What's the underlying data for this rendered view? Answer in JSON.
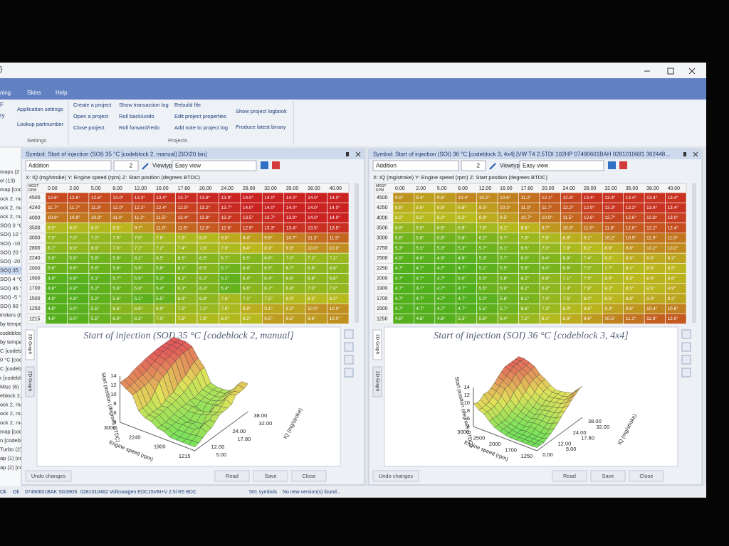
{
  "window": {
    "left_title": "}"
  },
  "ribbon": {
    "tabs": [
      "ning",
      "Skins",
      "Help"
    ],
    "left_fragments": [
      "F",
      "ry"
    ],
    "settings": {
      "items": [
        "Application settings",
        "Lookup partnumber"
      ],
      "label": "Settings"
    },
    "projects": {
      "columns": [
        [
          "Create a project",
          "Open a project",
          "Close project"
        ],
        [
          "Show transaction log",
          "Roll back/undo",
          "Roll forward/redo"
        ],
        [
          "Rebuild file",
          "Edit project properties",
          "Add note to project log"
        ],
        [
          "Show project logbook",
          "Produce latest binary"
        ]
      ],
      "label": "Projects"
    }
  },
  "tree": [
    "maps (2",
    "el (13)",
    "map [cod",
    "ock 2, ma",
    "ock 2, ma",
    "ock 2, ma",
    "SOI) 0 °C",
    "SOI) 10 °C",
    "SOI) -10 °",
    "SOI) 20 °C",
    "SOI) -20 °",
    "SOI) 35 °C",
    "SOI) 4 °C",
    "SOI) 45 °C",
    "SOI) -5 °C",
    "SOI) 60 °C",
    "imiters (8",
    "by temperat",
    "codeblock 1",
    "by temperatu",
    "C [codeblock",
    "0 °C [codeb",
    "C [codeblock",
    "r [codeblock",
    "Misc (6)",
    "eblock 2, mar",
    "ock 2, manual",
    "ock 2, ma",
    "ock 2, ma",
    "map [codebloc",
    "n [codeblock",
    "Turbo (2)",
    "ap (1) [codebl",
    "ap (2) [codebl"
  ],
  "panels": [
    {
      "title": "Symbol: Start of injection (SOI) 35 °C [codeblock 2, manual] [SOI20.bin]",
      "toolbar": {
        "mode": "Addition",
        "step": "2",
        "viewtype_label": "Viewtype",
        "viewtype": "Easy view"
      },
      "axes": "X: IQ (mg/stroke) Y: Engine speed (rpm) Z: Start position (degrees BTDC)",
      "table": {
        "corner": [
          "MGST",
          "RPM"
        ],
        "columns": [
          "0.00",
          "2.00",
          "5.00",
          "8.00",
          "12.00",
          "16.00",
          "17.80",
          "20.00",
          "24.00",
          "28.00",
          "32.00",
          "35.00",
          "38.00",
          "40.00"
        ],
        "rows": [
          4500,
          4240,
          4000,
          3500,
          3000,
          2800,
          2240,
          2000,
          1900,
          1700,
          1500,
          1250,
          1215
        ],
        "cells": [
          [
            "12.6°",
            "12.6°",
            "12.6°",
            "13.0°",
            "13.3°",
            "13.4°",
            "13.7°",
            "13.8°",
            "13.9°",
            "14.0°",
            "14.0°",
            "14.0°",
            "14.0°",
            "14.0°"
          ],
          [
            "11.7°",
            "11.7°",
            "11.9°",
            "12.0°",
            "12.2°",
            "12.4°",
            "12.9°",
            "13.2°",
            "13.7°",
            "14.0°",
            "14.0°",
            "14.0°",
            "14.0°",
            "14.0°"
          ],
          [
            "10.9°",
            "10.9°",
            "10.9°",
            "11.0°",
            "11.2°",
            "11.5°",
            "12.4°",
            "12.8°",
            "13.3°",
            "13.5°",
            "13.7°",
            "13.9°",
            "14.0°",
            "14.0°"
          ],
          [
            "8.0°",
            "8.0°",
            "8.0°",
            "8.5°",
            "9.7°",
            "11.0°",
            "11.5°",
            "12.0°",
            "12.5°",
            "12.9°",
            "13.3°",
            "13.4°",
            "13.5°",
            "13.5°"
          ],
          [
            "7.0°",
            "7.0°",
            "7.0°",
            "7.0°",
            "7.0°",
            "7.6°",
            "7.9°",
            "8.0°",
            "9.0°",
            "9.4°",
            "9.8°",
            "10.7°",
            "11.3°",
            "11.5°"
          ],
          [
            "6.7°",
            "6.9°",
            "6.9°",
            "7.0°",
            "7.2°",
            "7.2°",
            "7.4°",
            "7.6°",
            "7.9°",
            "8.4°",
            "8.9°",
            "9.3°",
            "10.0°",
            "10.0°"
          ],
          [
            "5.8°",
            "5.8°",
            "5.8°",
            "5.9°",
            "6.2°",
            "6.5°",
            "6.5°",
            "6.5°",
            "6.7°",
            "6.5°",
            "6.8°",
            "7.0°",
            "7.2°",
            "7.2°"
          ],
          [
            "5.6°",
            "5.6°",
            "5.6°",
            "5.6°",
            "5.9°",
            "5.8°",
            "6.1°",
            "6.5°",
            "5.7°",
            "6.4°",
            "6.5°",
            "6.7°",
            "6.8°",
            "6.8°"
          ],
          [
            "4.9°",
            "4.9°",
            "5.1°",
            "5.7°",
            "5.5°",
            "5.3°",
            "6.2°",
            "6.2°",
            "5.2°",
            "6.4°",
            "6.4°",
            "6.6°",
            "6.8°",
            "6.8°"
          ],
          [
            "4.8°",
            "4.8°",
            "5.2°",
            "5.6°",
            "5.8°",
            "5.4°",
            "6.3°",
            "6.3°",
            "5.4°",
            "6.6°",
            "6.7°",
            "6.9°",
            "7.0°",
            "7.0°"
          ],
          [
            "4.8°",
            "4.8°",
            "5.2°",
            "5.6°",
            "5.1°",
            "5.5°",
            "6.8°",
            "6.8°",
            "7.6°",
            "7.1°",
            "7.5°",
            "8.0°",
            "8.2°",
            "8.2°"
          ],
          [
            "4.8°",
            "5.0°",
            "5.5°",
            "6.6°",
            "6.8°",
            "6.9°",
            "7.3°",
            "7.2°",
            "7.8°",
            "8.8°",
            "9.1°",
            "9.2°",
            "10.0°",
            "10.0°"
          ],
          [
            "4.8°",
            "5.0°",
            "5.5°",
            "6.0°",
            "6.2°",
            "7.0°",
            "7.8°",
            "7.9°",
            "8.0°",
            "8.2°",
            "9.5°",
            "9.5°",
            "9.6°",
            "10.0°"
          ]
        ]
      },
      "chart": {
        "title": "Start of injection (SOI) 35 °C [codeblock 2, manual]",
        "z_label": "Start position (degrees BTDC)",
        "rpm_label": "Engine speed (rpm)",
        "iq_label": "IQ (mg/stroke)",
        "z_ticks": [
          "14",
          "12",
          "10",
          "8",
          "6",
          "4"
        ],
        "rpm_ticks": [
          "3000",
          "2240",
          "1900",
          "1215"
        ],
        "iq_ticks": [
          "38.00",
          "32.00",
          "24.00",
          "17.80",
          "12.00",
          "5.00"
        ]
      },
      "side_tabs": [
        "3D Graph",
        "2D Graph"
      ],
      "buttons": [
        "Undo changes",
        "Read",
        "Save",
        "Close"
      ]
    },
    {
      "title": "Symbol: Start of injection (SOI) 36 °C [codeblock 3, 4x4] [VW T4 2.5TDI 102HP 07490601BAH 0281010681 362448...",
      "toolbar": {
        "mode": "Addition",
        "step": "2",
        "viewtype_label": "Viewtype",
        "viewtype": "Easy view"
      },
      "axes": "X: IQ (mg/stroke) Y: Engine speed (rpm) Z: Start position (degrees BTDC)",
      "table": {
        "corner": [
          "MGST",
          "RPM"
        ],
        "columns": [
          "0.00",
          "2.00",
          "5.00",
          "8.00",
          "12.00",
          "16.00",
          "17.80",
          "20.00",
          "24.00",
          "28.00",
          "32.00",
          "35.00",
          "38.00",
          "40.00"
        ],
        "rows": [
          4500,
          4250,
          4000,
          3500,
          3000,
          2750,
          2500,
          2250,
          2000,
          1900,
          1700,
          1500,
          1250
        ],
        "cells": [
          [
            "9.9°",
            "9.4°",
            "9.6°",
            "10.4°",
            "10.2°",
            "10.6°",
            "11.2°",
            "12.1°",
            "12.8°",
            "13.4°",
            "13.4°",
            "13.4°",
            "13.4°",
            "13.4°"
          ],
          [
            "8.8°",
            "8.6°",
            "8.8°",
            "8.8°",
            "9.5°",
            "10.3°",
            "11.0°",
            "11.7°",
            "12.2°",
            "12.9°",
            "13.3°",
            "13.3°",
            "13.4°",
            "13.4°"
          ],
          [
            "8.2°",
            "8.2°",
            "8.2°",
            "8.2°",
            "8.9°",
            "9.5°",
            "10.7°",
            "10.9°",
            "11.5°",
            "12.6°",
            "12.7°",
            "12.6°",
            "12.8°",
            "13.0°"
          ],
          [
            "6.9°",
            "6.9°",
            "6.9°",
            "6.9°",
            "7.5°",
            "8.1°",
            "8.6°",
            "9.7°",
            "10.3°",
            "11.0°",
            "11.8°",
            "12.0°",
            "12.2°",
            "12.4°"
          ],
          [
            "5.8°",
            "5.8°",
            "5.8°",
            "5.8°",
            "6.2°",
            "6.7°",
            "7.3°",
            "7.8°",
            "8.8°",
            "9.1°",
            "10.2°",
            "10.9°",
            "11.0°",
            "11.0°"
          ],
          [
            "5.3°",
            "5.3°",
            "5.3°",
            "5.3°",
            "5.7°",
            "6.1°",
            "6.5°",
            "7.0°",
            "7.8°",
            "8.2°",
            "8.8°",
            "9.8°",
            "10.2°",
            "10.2°"
          ],
          [
            "4.9°",
            "4.9°",
            "4.9°",
            "4.9°",
            "5.3°",
            "5.7°",
            "6.0°",
            "6.4°",
            "6.8°",
            "7.4°",
            "8.2°",
            "8.9°",
            "9.0°",
            "9.2°"
          ],
          [
            "4.7°",
            "4.7°",
            "4.7°",
            "4.7°",
            "5.1°",
            "5.5°",
            "5.8°",
            "6.0°",
            "6.6°",
            "7.0°",
            "7.7°",
            "8.1°",
            "8.5°",
            "8.5°"
          ],
          [
            "4.7°",
            "4.7°",
            "4.7°",
            "5.0°",
            "5.5°",
            "5.8°",
            "6.2°",
            "6.8°",
            "7.1°",
            "7.5°",
            "8.0°",
            "8.3°",
            "8.6°",
            "8.6°"
          ],
          [
            "4.7°",
            "4.7°",
            "4.7°",
            "4.7°",
            "5.5°",
            "5.9°",
            "6.2°",
            "6.8°",
            "7.4°",
            "7.8°",
            "8.2°",
            "8.5°",
            "8.5°",
            "8.9°"
          ],
          [
            "4.7°",
            "4.7°",
            "4.7°",
            "4.7°",
            "5.0°",
            "5.6°",
            "6.1°",
            "7.0°",
            "7.5°",
            "8.0°",
            "8.5°",
            "8.8°",
            "9.0°",
            "9.2°"
          ],
          [
            "4.7°",
            "4.7°",
            "4.7°",
            "4.7°",
            "5.1°",
            "5.7°",
            "6.6°",
            "7.3°",
            "8.0°",
            "8.6°",
            "9.3°",
            "9.8°",
            "10.4°",
            "10.6°"
          ],
          [
            "4.8°",
            "4.8°",
            "4.8°",
            "5.3°",
            "5.8°",
            "6.4°",
            "7.2°",
            "8.1°",
            "8.9°",
            "9.6°",
            "10.5°",
            "11.1°",
            "11.8°",
            "12.0°"
          ]
        ]
      },
      "chart": {
        "title": "Start of injection (SOI) 36 °C [codeblock 3, 4x4]",
        "z_label": "Start position (degrees BTDC)",
        "rpm_label": "Engine speed (rpm)",
        "iq_label": "IQ (mg/stroke)",
        "z_ticks": [
          "14",
          "12",
          "10",
          "8",
          "6",
          "4"
        ],
        "rpm_ticks": [
          "3000",
          "2500",
          "2000",
          "1700",
          "1250"
        ],
        "iq_ticks": [
          "38.00",
          "32.00",
          "24.00",
          "17.80",
          "12.00",
          "5.00",
          "0.00"
        ]
      },
      "side_tabs": [
        "3D Graph",
        "2D Graph"
      ],
      "buttons": [
        "Undo changes",
        "Read",
        "Save",
        "Close"
      ]
    }
  ],
  "status": [
    "Ok",
    "Ok",
    "07490601BAK SG390S",
    "0281010462 Volkswagen EDC15VM+V 2.5l R5 BDC",
    "501 symbols",
    "No new version(s) found..."
  ]
}
